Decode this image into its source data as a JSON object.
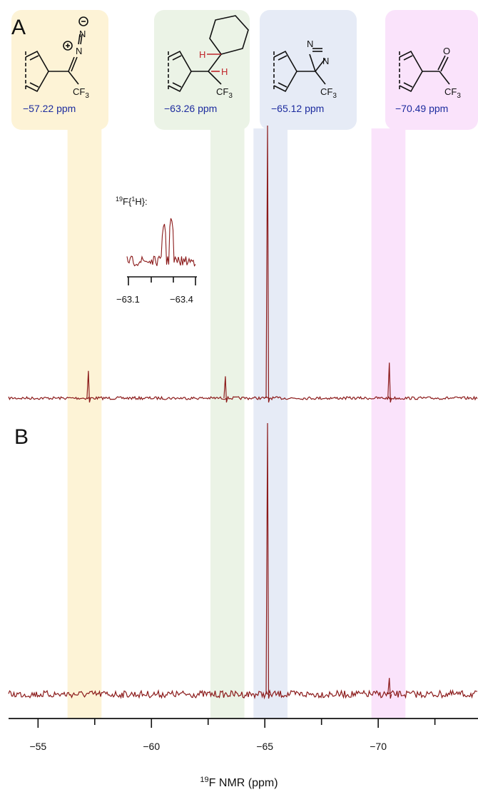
{
  "chart_data": {
    "type": "line",
    "xlabel_sup": "19",
    "xlabel": "F NMR (ppm)",
    "xlim": [
      -53.7,
      -74.4
    ],
    "xticks": [
      -55,
      -60,
      -65,
      -70
    ],
    "xtick_labels": [
      "−55",
      "−60",
      "−65",
      "−70"
    ],
    "highlight_bands": [
      {
        "id": "diazo",
        "from": -56.3,
        "to": -57.8,
        "color": "#fdf3d6",
        "label": "−57.22 ppm"
      },
      {
        "id": "alkyl",
        "from": -62.6,
        "to": -64.1,
        "color": "#ebf3e6",
        "label": "−63.26 ppm"
      },
      {
        "id": "diazirine",
        "from": -64.5,
        "to": -66.0,
        "color": "#e6ebf6",
        "label": "−65.12 ppm"
      },
      {
        "id": "ketone",
        "from": -69.7,
        "to": -71.2,
        "color": "#fae3fb",
        "label": "−70.49 ppm"
      }
    ],
    "panels": [
      {
        "label": "A",
        "peaks": [
          {
            "x": -57.22,
            "h": 0.1
          },
          {
            "x": -63.26,
            "h": 0.08
          },
          {
            "x": -65.12,
            "h": 1.0
          },
          {
            "x": -70.49,
            "h": 0.13
          }
        ]
      },
      {
        "label": "B",
        "peaks": [
          {
            "x": -65.12,
            "h": 1.0
          },
          {
            "x": -70.49,
            "h": 0.06
          }
        ]
      }
    ],
    "inset": {
      "title_sup1": "19",
      "title_mid": "F{",
      "title_sup2": "1",
      "title_end": "H}:",
      "xticks": [
        -63.1,
        -63.4
      ],
      "xtick_labels": [
        "−63.1",
        "−63.4"
      ]
    },
    "structures": [
      {
        "group": "CF₃",
        "substituent": "N₂ (diazo)"
      },
      {
        "group": "CF₃",
        "substituent": "H / cyclohexyl"
      },
      {
        "group": "CF₃",
        "substituent": "diazirine"
      },
      {
        "group": "CF₃",
        "substituent": "C=O"
      }
    ]
  },
  "colors": {
    "spectrum": "#8b1a1a",
    "highlight_h": "#c0262b",
    "ppm_text": "#1c2b9e"
  }
}
